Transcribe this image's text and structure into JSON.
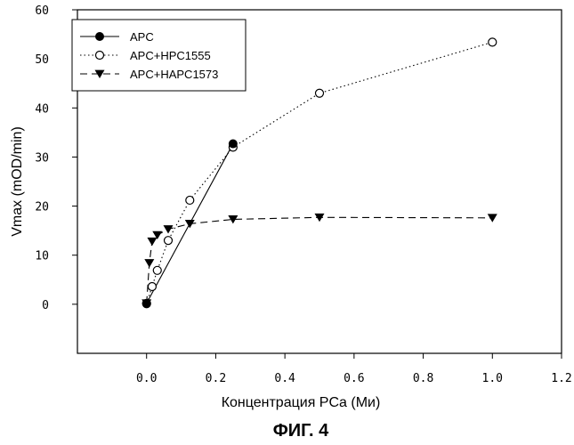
{
  "chart_data": {
    "type": "line",
    "xlabel": "Концентрация PCa (Ми)",
    "ylabel": "Vmax (mOD/min)",
    "xlim": [
      -0.2,
      1.2
    ],
    "ylim": [
      -10,
      60
    ],
    "x_ticks": [
      "0.0",
      "0.2",
      "0.4",
      "0.6",
      "0.8",
      "1.0",
      "1.2"
    ],
    "y_ticks": [
      "0",
      "10",
      "20",
      "30",
      "40",
      "50",
      "60"
    ],
    "legend_position": "top-left",
    "grid": false,
    "series": [
      {
        "name": "APC",
        "line_style": "solid",
        "marker": "filled-circle",
        "points": [
          [
            0.0,
            0.2
          ],
          [
            0.25,
            32.7
          ]
        ]
      },
      {
        "name": "APC+HPC1555",
        "line_style": "dotted",
        "marker": "open-circle",
        "points": [
          [
            0.0,
            0.1
          ],
          [
            0.016,
            3.6
          ],
          [
            0.031,
            6.9
          ],
          [
            0.0625,
            13.0
          ],
          [
            0.125,
            21.2
          ],
          [
            0.25,
            32.0
          ],
          [
            0.5,
            43.0
          ],
          [
            1.0,
            53.4
          ]
        ]
      },
      {
        "name": "APC+HAPC1573",
        "line_style": "dashed",
        "marker": "filled-triangle-down",
        "points": [
          [
            0.0,
            0.2
          ],
          [
            0.008,
            8.4
          ],
          [
            0.016,
            12.8
          ],
          [
            0.031,
            14.1
          ],
          [
            0.0625,
            15.3
          ],
          [
            0.125,
            16.4
          ],
          [
            0.25,
            17.3
          ],
          [
            0.5,
            17.7
          ],
          [
            1.0,
            17.6
          ]
        ]
      }
    ]
  },
  "caption": "ФИГ. 4"
}
